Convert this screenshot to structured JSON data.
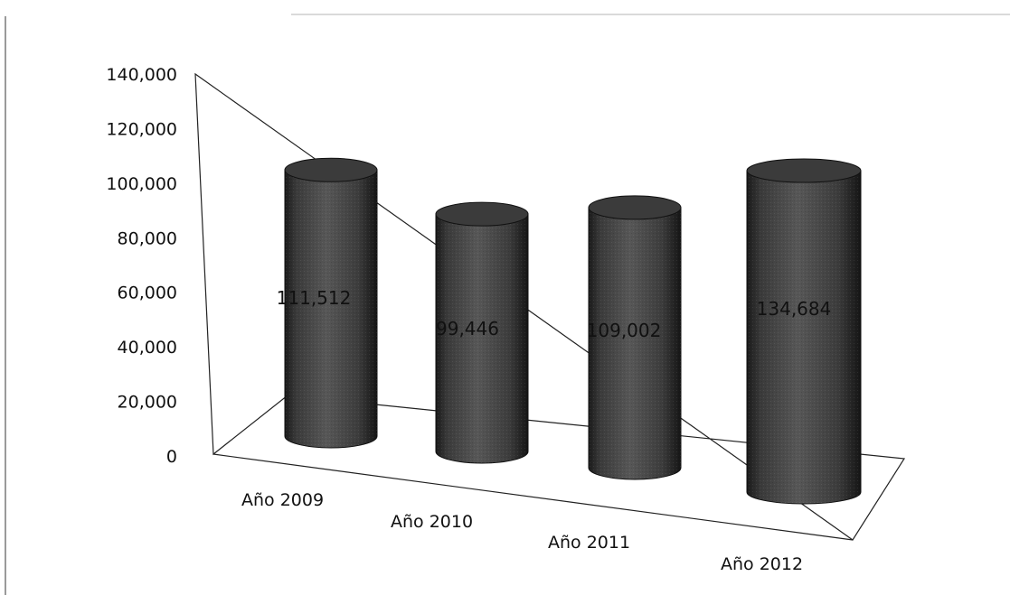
{
  "chart_data": {
    "type": "bar",
    "style": "3d-cylinder",
    "categories": [
      "Año 2009",
      "Año 2010",
      "Año 2011",
      "Año 2012"
    ],
    "values": [
      111512,
      99446,
      109002,
      134684
    ],
    "data_labels": [
      "111,512",
      "99,446",
      "109,002",
      "134,684"
    ],
    "yticks": [
      "0",
      "20,000",
      "40,000",
      "60,000",
      "80,000",
      "100,000",
      "120,000",
      "140,000"
    ],
    "ylim": [
      0,
      140000
    ],
    "grid": false,
    "legend": "none",
    "bar_color": "#4a4a4a"
  }
}
